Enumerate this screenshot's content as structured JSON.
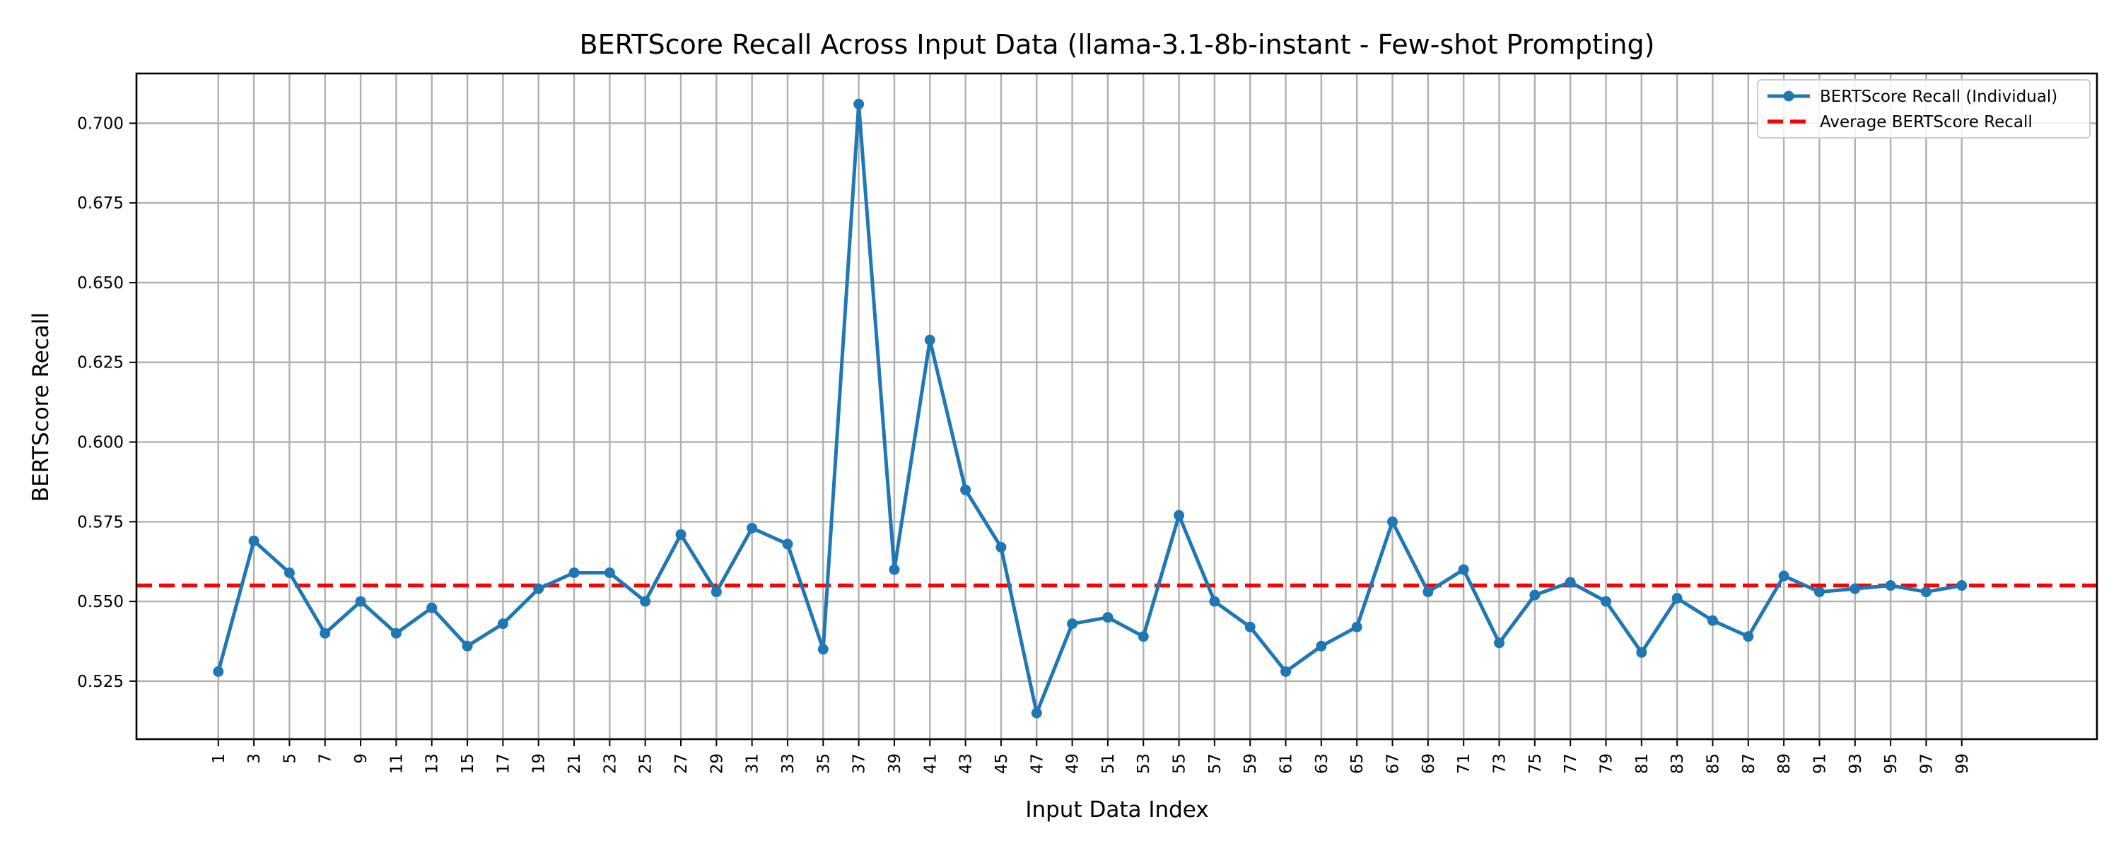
{
  "chart_data": {
    "type": "line",
    "title": "BERTScore Recall Across Input Data (llama-3.1-8b-instant - Few-shot Prompting)",
    "xlabel": "Input Data Index",
    "ylabel": "BERTScore Recall",
    "x": [
      1,
      3,
      5,
      7,
      9,
      11,
      13,
      15,
      17,
      19,
      21,
      23,
      25,
      27,
      29,
      31,
      33,
      35,
      37,
      39,
      41,
      43,
      45,
      47,
      49,
      51,
      53,
      55,
      57,
      59,
      61,
      63,
      65,
      67,
      69,
      71,
      73,
      75,
      77,
      79,
      81,
      83,
      85,
      87,
      89,
      91,
      93,
      95,
      97,
      99
    ],
    "x_tick_labels": [
      "1",
      "3",
      "5",
      "7",
      "9",
      "11",
      "13",
      "15",
      "17",
      "19",
      "21",
      "23",
      "25",
      "27",
      "29",
      "31",
      "33",
      "35",
      "37",
      "39",
      "41",
      "43",
      "45",
      "47",
      "49",
      "51",
      "53",
      "55",
      "57",
      "59",
      "61",
      "63",
      "65",
      "67",
      "69",
      "71",
      "73",
      "75",
      "77",
      "79",
      "81",
      "83",
      "85",
      "87",
      "89",
      "91",
      "93",
      "95",
      "97",
      "99"
    ],
    "xlim": [
      -3.6,
      106.6
    ],
    "ylim": [
      0.5068,
      0.7156
    ],
    "y_ticks": [
      0.525,
      0.55,
      0.575,
      0.6,
      0.625,
      0.65,
      0.675,
      0.7
    ],
    "y_tick_labels": [
      "0.525",
      "0.550",
      "0.575",
      "0.600",
      "0.625",
      "0.650",
      "0.675",
      "0.700"
    ],
    "grid": true,
    "legend_position": "top-right",
    "series": [
      {
        "name": "BERTScore Recall (Individual)",
        "color": "#1f77b4",
        "style": "solid-with-markers",
        "values": [
          0.528,
          0.569,
          0.559,
          0.54,
          0.55,
          0.54,
          0.548,
          0.536,
          0.543,
          0.554,
          0.559,
          0.559,
          0.55,
          0.571,
          0.553,
          0.573,
          0.568,
          0.535,
          0.706,
          0.56,
          0.632,
          0.585,
          0.567,
          0.515,
          0.543,
          0.545,
          0.539,
          0.577,
          0.55,
          0.542,
          0.528,
          0.536,
          0.542,
          0.575,
          0.553,
          0.56,
          0.537,
          0.552,
          0.556,
          0.55,
          0.534,
          0.551,
          0.544,
          0.539,
          0.558,
          0.553,
          0.554,
          0.555,
          0.553,
          0.555
        ]
      },
      {
        "name": "Average BERTScore Recall",
        "color": "#ff0000",
        "style": "dashed",
        "value": 0.555
      }
    ]
  }
}
